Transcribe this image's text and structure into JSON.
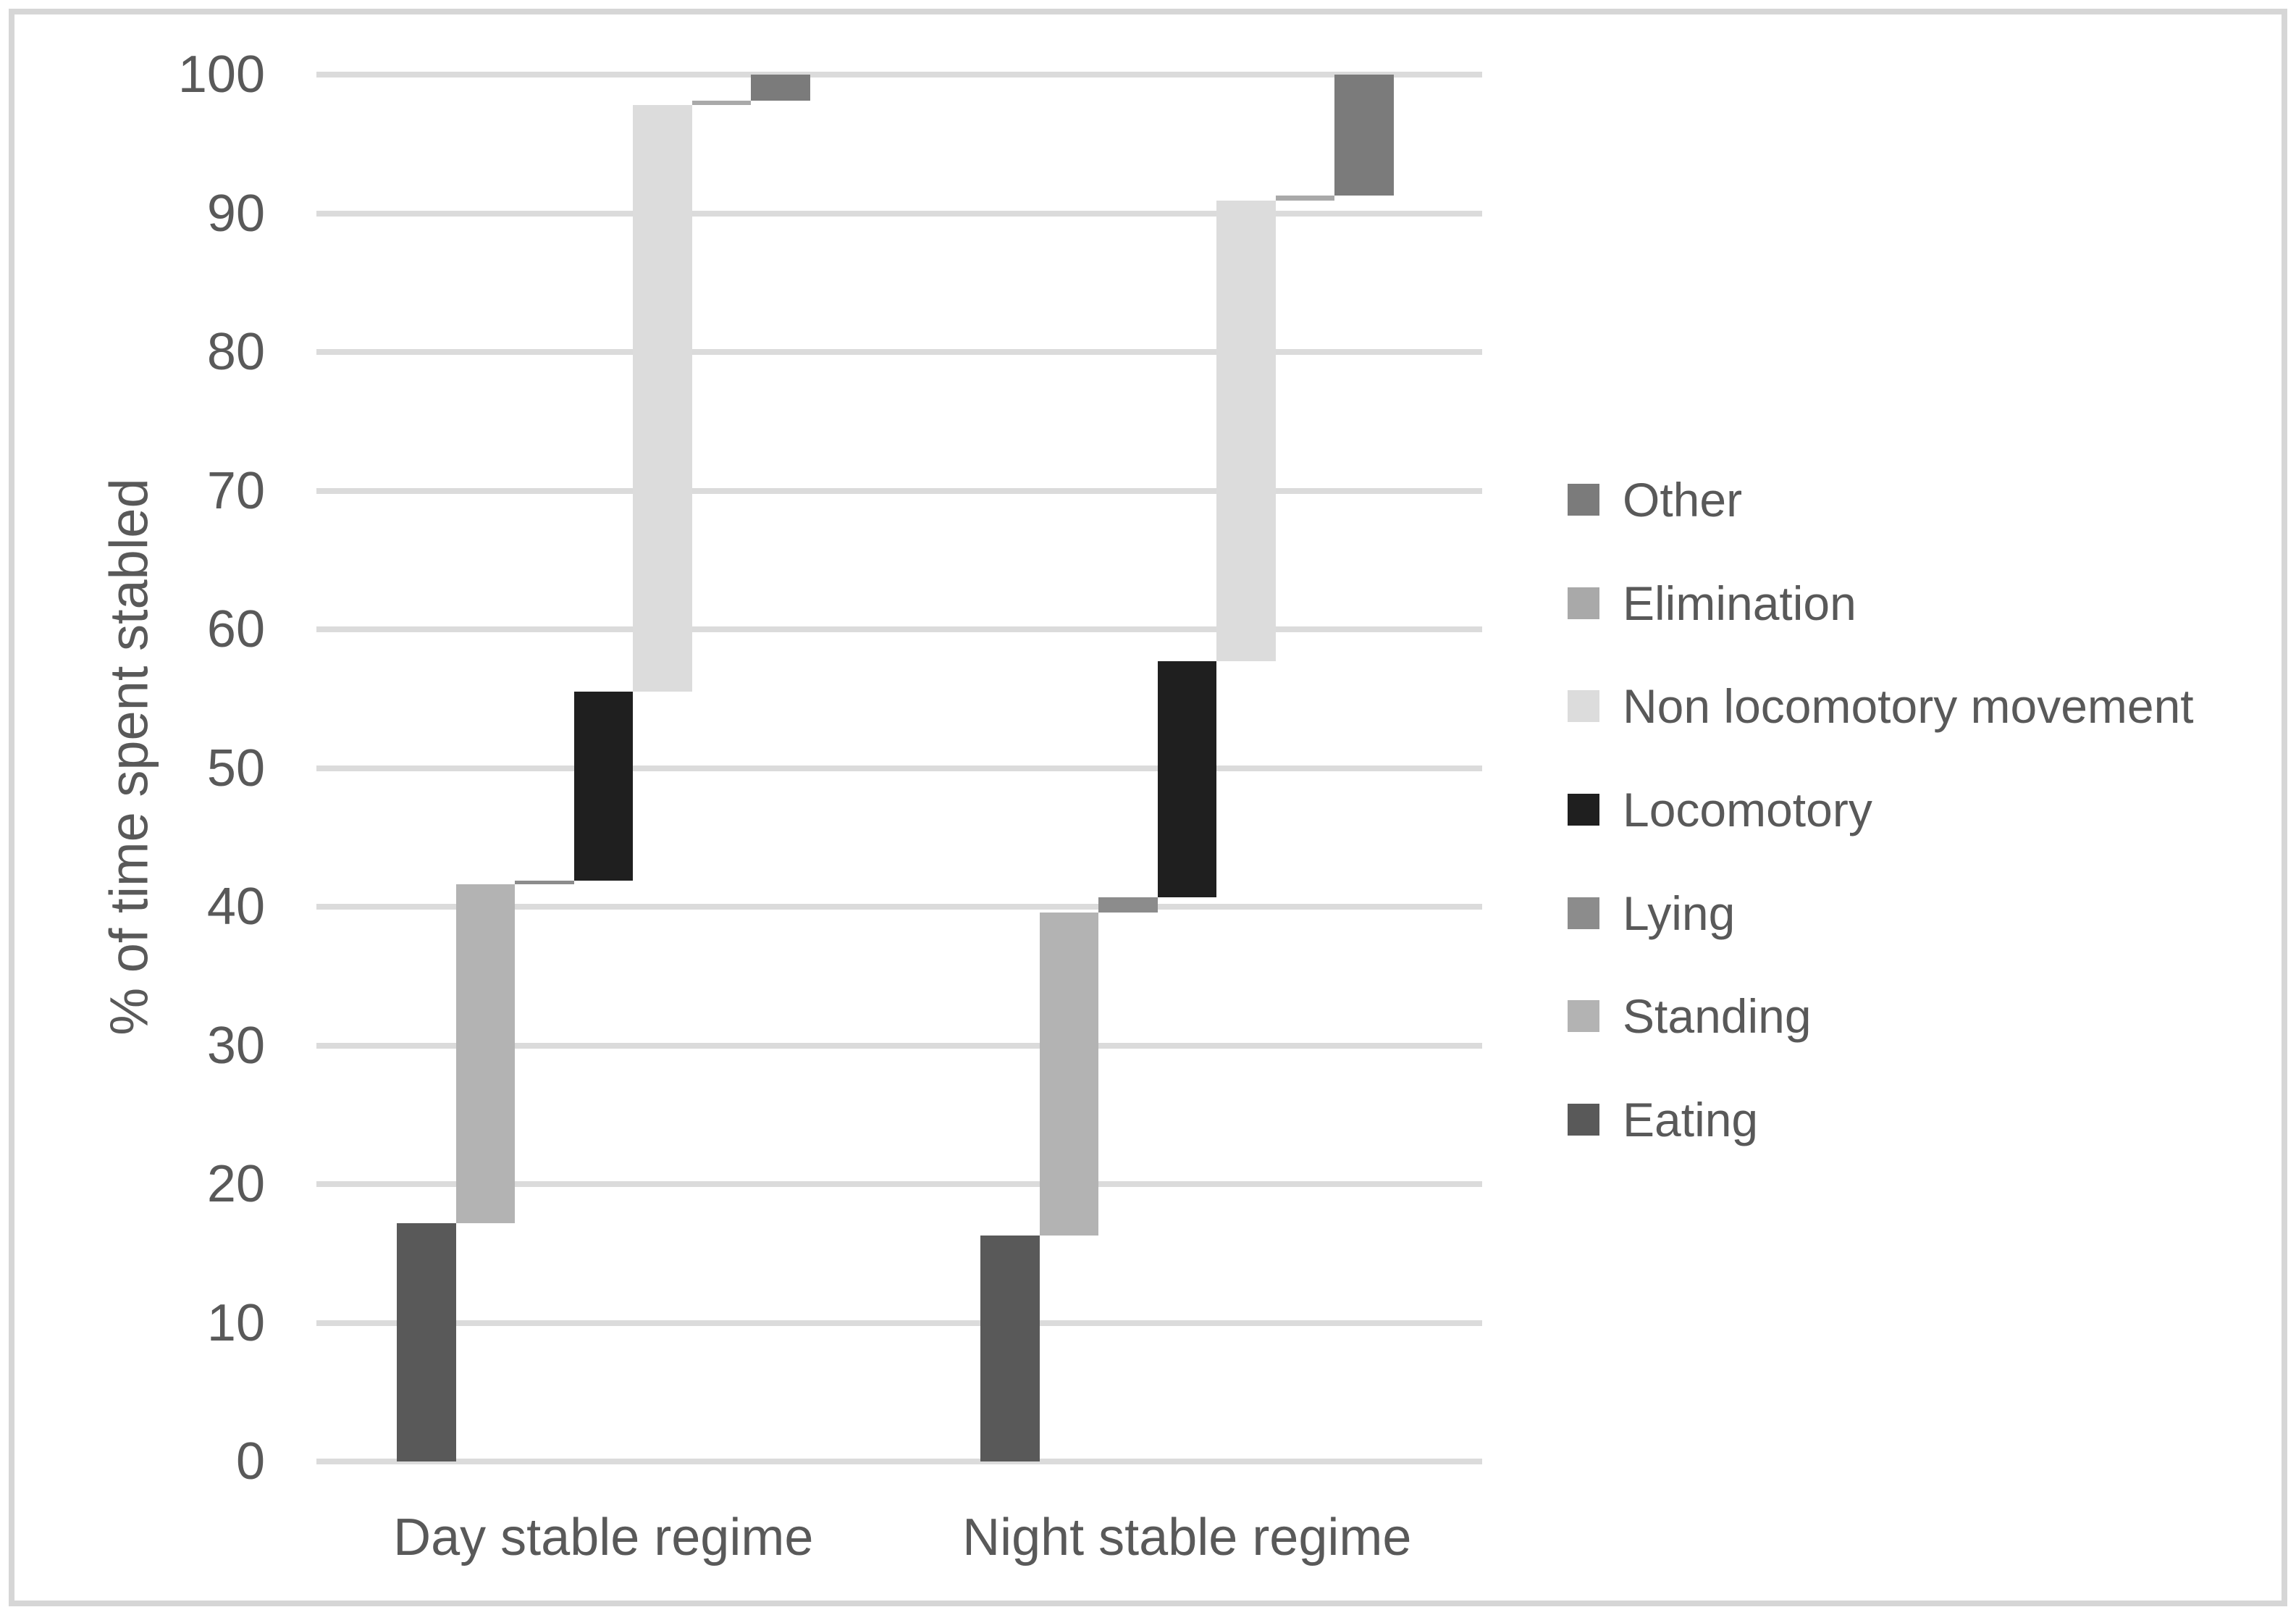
{
  "axis": {
    "y_title": "% of time spent stabled"
  },
  "chart_data": {
    "type": "bar",
    "subtype": "stacked-waterfall-column",
    "title": "",
    "xlabel": "",
    "ylabel": "% of time spent stabled",
    "ylim": [
      0,
      100
    ],
    "yticks": [
      0,
      10,
      20,
      30,
      40,
      50,
      60,
      70,
      80,
      90,
      100
    ],
    "grid": true,
    "legend_position": "right",
    "categories": [
      "Day stable regime",
      "Night stable regime"
    ],
    "series": [
      {
        "name": "Eating",
        "color": "#595959",
        "values": [
          17.2,
          16.3
        ]
      },
      {
        "name": "Standing",
        "color": "#b3b3b3",
        "values": [
          24.4,
          23.3
        ]
      },
      {
        "name": "Lying",
        "color": "#8c8c8c",
        "values": [
          0.3,
          1.1
        ]
      },
      {
        "name": "Locomotory",
        "color": "#1f1f1f",
        "values": [
          13.6,
          17.0
        ]
      },
      {
        "name": "Non locomotory movement",
        "color": "#dcdcdc",
        "values": [
          42.3,
          33.2
        ]
      },
      {
        "name": "Elimination",
        "color": "#a9a9a9",
        "values": [
          0.3,
          0.4
        ]
      },
      {
        "name": "Other",
        "color": "#7b7b7b",
        "values": [
          1.9,
          8.7
        ]
      }
    ],
    "legend_order": [
      "Other",
      "Elimination",
      "Non locomotory movement",
      "Locomotory",
      "Lying",
      "Standing",
      "Eating"
    ]
  },
  "colors": {
    "grid": "#dbdbdb",
    "border": "#d6d6d6",
    "text": "#595959",
    "background": "#ffffff"
  }
}
